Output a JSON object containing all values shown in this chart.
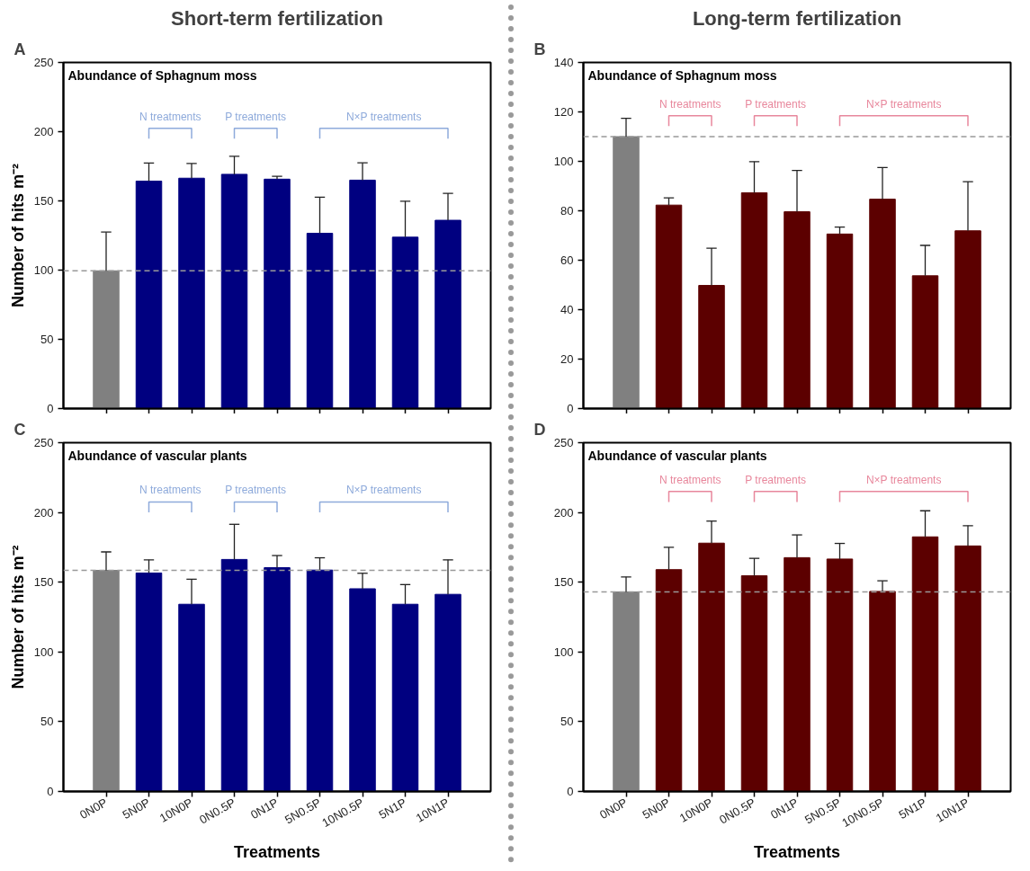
{
  "chart_data": [
    {
      "type": "bar",
      "title": "Short-term fertilization",
      "subtitle": "Abundance of Sphagnum moss",
      "ylabel": "Number of hits m⁻²",
      "categories": [
        null,
        null,
        null,
        null,
        null,
        null,
        null,
        null,
        null
      ],
      "values": [
        99.5,
        164.3,
        166.4,
        169.2,
        165.7,
        126.6,
        165,
        123.8,
        136
      ],
      "errors": [
        [
          99.5,
          127.5
        ],
        [
          164.3,
          177.3
        ],
        [
          166.4,
          177
        ],
        [
          169.2,
          182.2
        ],
        [
          165.7,
          167.8
        ],
        [
          126.6,
          152.7
        ],
        [
          165,
          177.5
        ],
        [
          123.8,
          149.8
        ],
        [
          136,
          155.5
        ]
      ],
      "colors": [
        "#808080",
        "#000080",
        "#000080",
        "#000080",
        "#000080",
        "#000080",
        "#000080",
        "#000080",
        "#000080"
      ],
      "ylim": [
        0,
        250
      ],
      "yticks": [
        0,
        50,
        100,
        150,
        200,
        250
      ],
      "ref_lines": [
        {
          "axis": "y",
          "value": 99.5,
          "color": "#999999",
          "line_style": "dashed"
        }
      ],
      "annotations": [
        "A",
        "N treatments",
        "P treatments",
        "N×P treatments"
      ]
    },
    {
      "type": "bar",
      "title": "Long-term fertilization",
      "subtitle": "Abundance of Sphagnum moss",
      "categories": [
        null,
        null,
        null,
        null,
        null,
        null,
        null,
        null,
        null
      ],
      "values": [
        110,
        82.3,
        49.8,
        87.3,
        79.6,
        70.6,
        84.7,
        53.7,
        71.9
      ],
      "errors": [
        [
          110,
          117.4
        ],
        [
          82.3,
          85.2
        ],
        [
          49.8,
          64.9
        ],
        [
          87.3,
          99.9
        ],
        [
          79.6,
          96.3
        ],
        [
          70.6,
          73.4
        ],
        [
          84.7,
          97.5
        ],
        [
          53.7,
          66
        ],
        [
          71.9,
          91.8
        ]
      ],
      "colors": [
        "#808080",
        "#5c0000",
        "#5c0000",
        "#5c0000",
        "#5c0000",
        "#5c0000",
        "#5c0000",
        "#5c0000",
        "#5c0000"
      ],
      "ylim": [
        0,
        140
      ],
      "yticks": [
        0,
        20,
        40,
        60,
        80,
        100,
        120,
        140
      ],
      "ref_lines": [
        {
          "axis": "y",
          "value": 110,
          "color": "#999999",
          "line_style": "dashed"
        }
      ],
      "annotations": [
        "B",
        "N treatments",
        "P treatments",
        "N×P treatments"
      ]
    },
    {
      "type": "bar",
      "subtitle": "Abundance of vascular plants",
      "xlabel": "Treatments",
      "ylabel": "Number of hits m⁻²",
      "categories": [
        "0N0P",
        "5N0P",
        "10N0P",
        "0N0.5P",
        "0N1P",
        "5N0.5P",
        "10N0.5P",
        "5N1P",
        "10N1P"
      ],
      "values": [
        158.5,
        156.6,
        134.2,
        166.3,
        160.4,
        158.7,
        145.3,
        134.2,
        141.3
      ],
      "errors": [
        [
          158.5,
          171.7
        ],
        [
          156.6,
          166
        ],
        [
          134.2,
          152.1
        ],
        [
          166.3,
          191.5
        ],
        [
          160.4,
          169.1
        ],
        [
          158.7,
          167.5
        ],
        [
          145.3,
          156.4
        ],
        [
          134.2,
          148.3
        ],
        [
          141.3,
          166
        ]
      ],
      "colors": [
        "#808080",
        "#000080",
        "#000080",
        "#000080",
        "#000080",
        "#000080",
        "#000080",
        "#000080",
        "#000080"
      ],
      "ylim": [
        0,
        250
      ],
      "yticks": [
        0,
        50,
        100,
        150,
        200,
        250
      ],
      "ref_lines": [
        {
          "axis": "y",
          "value": 158.5,
          "color": "#999999",
          "line_style": "dashed"
        }
      ],
      "annotations": [
        "C",
        "N treatments",
        "P treatments",
        "N×P treatments"
      ]
    },
    {
      "type": "bar",
      "subtitle": "Abundance of vascular plants",
      "xlabel": "Treatments",
      "categories": [
        "0N0P",
        "5N0P",
        "10N0P",
        "0N0.5P",
        "0N1P",
        "5N0.5P",
        "10N0.5P",
        "5N1P",
        "10N1P"
      ],
      "values": [
        143,
        159,
        178,
        154.6,
        167.6,
        166.6,
        143.4,
        182.5,
        176
      ],
      "errors": [
        [
          143,
          153.8
        ],
        [
          159,
          175
        ],
        [
          178,
          193.8
        ],
        [
          154.6,
          167.1
        ],
        [
          167.6,
          183.9
        ],
        [
          166.6,
          177.8
        ],
        [
          143.4,
          151
        ],
        [
          182.5,
          201.2
        ],
        [
          176,
          190.5
        ]
      ],
      "colors": [
        "#808080",
        "#5c0000",
        "#5c0000",
        "#5c0000",
        "#5c0000",
        "#5c0000",
        "#5c0000",
        "#5c0000",
        "#5c0000"
      ],
      "ylim": [
        0,
        250
      ],
      "yticks": [
        0,
        50,
        100,
        150,
        200,
        250
      ],
      "ref_lines": [
        {
          "axis": "y",
          "value": 143,
          "color": "#999999",
          "line_style": "dashed"
        }
      ],
      "annotations": [
        "D",
        "N treatments",
        "P treatments",
        "N×P treatments"
      ]
    }
  ]
}
